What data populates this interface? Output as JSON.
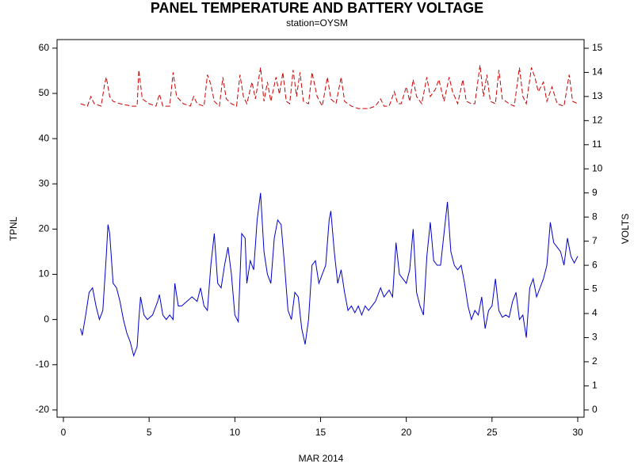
{
  "chart_data": {
    "type": "line",
    "title": "PANEL TEMPERATURE AND BATTERY VOLTAGE",
    "subtitle": "station=OYSM",
    "xlabel": "MAR 2014",
    "ylabel": "TPNL",
    "y2label": "VOLTS",
    "xlim": [
      -0.37,
      30.37
    ],
    "xticks": [
      0,
      5,
      10,
      15,
      20,
      25,
      30
    ],
    "ylim": [
      -21.6,
      61.9
    ],
    "yticks": [
      -20,
      -10,
      0,
      10,
      20,
      30,
      40,
      50,
      60
    ],
    "y2lim": [
      -0.3,
      15.36
    ],
    "y2ticks": [
      0,
      1,
      2,
      3,
      4,
      5,
      6,
      7,
      8,
      9,
      10,
      11,
      12,
      13,
      14,
      15
    ],
    "grid": false,
    "series": [
      {
        "color": "#0000cc",
        "dash": "none",
        "x": [
          1.0,
          1.1,
          1.3,
          1.5,
          1.7,
          1.9,
          2.1,
          2.3,
          2.5,
          2.6,
          2.7,
          2.9,
          3.1,
          3.3,
          3.5,
          3.7,
          3.9,
          4.1,
          4.3,
          4.4,
          4.5,
          4.7,
          4.9,
          5.2,
          5.5,
          5.6,
          5.8,
          6.0,
          6.2,
          6.4,
          6.5,
          6.7,
          6.9,
          7.2,
          7.5,
          7.8,
          8.0,
          8.2,
          8.4,
          8.6,
          8.8,
          9.0,
          9.2,
          9.4,
          9.6,
          9.8,
          10.0,
          10.2,
          10.4,
          10.6,
          10.7,
          10.9,
          11.1,
          11.3,
          11.5,
          11.7,
          11.9,
          12.1,
          12.3,
          12.5,
          12.7,
          12.9,
          13.1,
          13.3,
          13.5,
          13.7,
          13.9,
          14.1,
          14.3,
          14.5,
          14.7,
          14.9,
          15.1,
          15.3,
          15.5,
          15.6,
          15.8,
          16.0,
          16.2,
          16.4,
          16.6,
          16.8,
          17.0,
          17.2,
          17.4,
          17.6,
          17.8,
          18.0,
          18.2,
          18.5,
          18.7,
          19.0,
          19.2,
          19.4,
          19.6,
          19.8,
          20.0,
          20.2,
          20.4,
          20.6,
          20.8,
          21.0,
          21.2,
          21.4,
          21.6,
          21.8,
          22.0,
          22.2,
          22.4,
          22.6,
          22.8,
          23.0,
          23.2,
          23.4,
          23.6,
          23.8,
          24.0,
          24.2,
          24.4,
          24.6,
          24.8,
          25.0,
          25.2,
          25.4,
          25.6,
          25.8,
          26.0,
          26.2,
          26.4,
          26.6,
          26.8,
          27.0,
          27.2,
          27.4,
          27.6,
          27.8,
          28.0,
          28.2,
          28.4,
          28.6,
          28.8,
          29.0,
          29.2,
          29.4,
          29.6,
          29.8,
          30.0
        ],
        "values": [
          -2,
          -3.5,
          1,
          6,
          7,
          3,
          0,
          2,
          14,
          21,
          19,
          8,
          7,
          4,
          0,
          -3,
          -5,
          -8,
          -6,
          0,
          5,
          1,
          0,
          1,
          4,
          5.5,
          1,
          0,
          1,
          0,
          8,
          3,
          3,
          4,
          5,
          4,
          7,
          3,
          2,
          12,
          19,
          8,
          7,
          12,
          16,
          10,
          1,
          -0.5,
          19,
          18,
          8,
          13,
          11,
          22,
          28,
          15,
          10,
          8,
          18,
          22,
          21,
          12,
          2,
          0,
          6,
          5,
          -2,
          -5.5,
          0,
          12,
          13,
          8,
          10,
          12,
          22,
          24,
          15,
          8,
          11,
          6,
          2,
          3,
          1.5,
          3,
          1,
          3,
          2,
          3,
          4,
          7,
          5,
          6.5,
          5,
          17,
          10,
          9,
          8,
          11,
          20,
          6,
          3,
          1,
          14,
          21.5,
          13,
          12,
          12,
          19,
          26,
          15,
          12,
          11,
          12,
          8,
          3,
          0,
          2,
          1,
          5,
          -2,
          2,
          3,
          9,
          2,
          0.5,
          1,
          0.5,
          4,
          6,
          0,
          1,
          -4,
          7,
          9,
          5,
          7,
          9,
          12,
          21.5,
          17,
          16,
          15,
          12,
          18,
          14,
          12.5,
          14
        ]
      },
      {
        "color": "#cc0000",
        "dash": "6 3",
        "axis": "y2",
        "x": [
          1.0,
          1.4,
          1.6,
          1.8,
          2.2,
          2.4,
          2.5,
          2.7,
          2.9,
          3.3,
          4.0,
          4.3,
          4.4,
          4.6,
          5.0,
          5.4,
          5.6,
          5.8,
          6.2,
          6.4,
          6.6,
          7.0,
          7.4,
          7.6,
          7.8,
          8.2,
          8.4,
          8.6,
          8.8,
          9.1,
          9.3,
          9.5,
          9.8,
          10.1,
          10.3,
          10.5,
          10.7,
          11.0,
          11.2,
          11.5,
          11.7,
          11.9,
          12.1,
          12.4,
          12.6,
          12.8,
          13.0,
          13.2,
          13.4,
          13.6,
          13.8,
          14.0,
          14.3,
          14.5,
          14.8,
          15.1,
          15.4,
          15.6,
          15.9,
          16.2,
          16.4,
          16.8,
          17.2,
          17.8,
          18.2,
          18.5,
          18.7,
          19.0,
          19.3,
          19.5,
          19.7,
          20.0,
          20.2,
          20.4,
          20.6,
          20.9,
          21.2,
          21.4,
          21.7,
          21.9,
          22.2,
          22.5,
          22.7,
          23.0,
          23.3,
          23.5,
          23.8,
          24.0,
          24.3,
          24.5,
          24.7,
          24.9,
          25.2,
          25.4,
          25.6,
          26.0,
          26.3,
          26.6,
          26.8,
          27.0,
          27.3,
          27.5,
          27.7,
          28.0,
          28.2,
          28.5,
          28.8,
          29.2,
          29.5,
          29.7,
          30.0
        ],
        "values": [
          12.7,
          12.6,
          13.0,
          12.7,
          12.6,
          13.5,
          13.8,
          13.0,
          12.8,
          12.7,
          12.6,
          12.6,
          14.1,
          12.9,
          12.7,
          12.6,
          13.1,
          12.6,
          12.6,
          14.0,
          13.0,
          12.7,
          12.6,
          13.0,
          12.7,
          12.6,
          13.9,
          13.5,
          12.8,
          12.6,
          13.8,
          12.9,
          12.7,
          12.6,
          13.9,
          13.0,
          12.7,
          13.6,
          12.9,
          14.2,
          12.8,
          13.6,
          12.8,
          13.8,
          13.1,
          14.0,
          12.8,
          12.7,
          14.1,
          13.0,
          14.0,
          12.8,
          12.7,
          14.0,
          13.0,
          12.6,
          13.8,
          12.9,
          12.7,
          13.8,
          12.8,
          12.6,
          12.5,
          12.5,
          12.6,
          12.9,
          12.6,
          12.6,
          13.2,
          12.7,
          12.7,
          13.4,
          12.8,
          13.7,
          13.0,
          12.7,
          13.8,
          13.0,
          13.3,
          13.7,
          12.8,
          13.8,
          13.2,
          12.7,
          13.7,
          12.8,
          12.7,
          12.7,
          14.3,
          13.0,
          13.9,
          12.8,
          12.7,
          14.1,
          12.9,
          12.7,
          12.6,
          14.2,
          13.0,
          12.7,
          14.2,
          13.8,
          13.2,
          13.6,
          12.8,
          13.4,
          12.7,
          12.6,
          13.9,
          12.8,
          12.7
        ]
      }
    ]
  }
}
